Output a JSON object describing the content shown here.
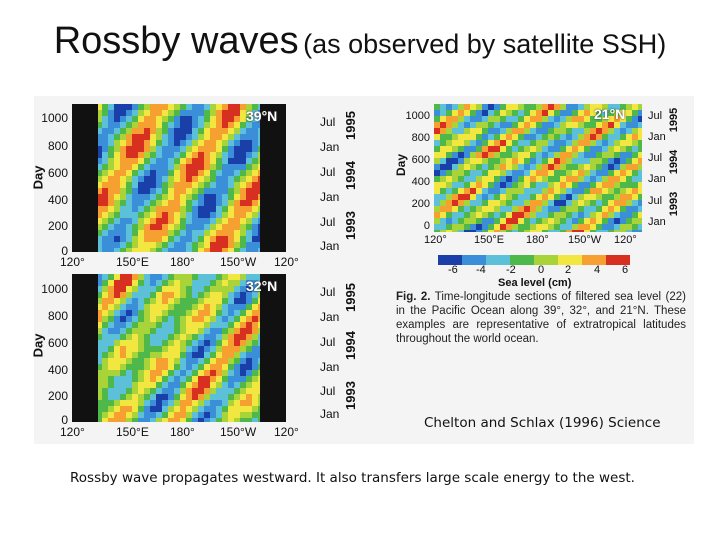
{
  "title": {
    "main": "Rossby waves",
    "sub": "(as observed by satellite SSH)"
  },
  "panels": [
    {
      "latitude": "39°N"
    },
    {
      "latitude": "32°N"
    },
    {
      "latitude": "21°N"
    }
  ],
  "axes": {
    "y_title": "Day",
    "day_ticks_large": [
      "1000",
      "800",
      "600",
      "400",
      "200",
      "0"
    ],
    "day_ticks_small": [
      "1000",
      "800",
      "600",
      "400",
      "200",
      "0"
    ],
    "lon_ticks": [
      "120°",
      "150°E",
      "180°",
      "150°W",
      "120°"
    ],
    "month_ticks": [
      "Jul",
      "Jan",
      "Jul",
      "Jan",
      "Jul",
      "Jan"
    ],
    "years": [
      "1995",
      "1994",
      "1993"
    ]
  },
  "colorbar": {
    "ticks": [
      "-6",
      "-4",
      "-2",
      "0",
      "2",
      "4",
      "6"
    ],
    "label": "Sea level (cm)",
    "colors": [
      "#1a3fa8",
      "#3b8fd8",
      "#5cc0d8",
      "#4fb84a",
      "#a8d43a",
      "#f2e640",
      "#f5a030",
      "#d83020"
    ]
  },
  "caption": {
    "lead": "Fig. 2.",
    "text": "Time-longitude sections of filtered sea level (22) in the Pacific Ocean along 39°, 32°, and 21°N. These examples are representative of extratropical latitudes throughout the world ocean."
  },
  "citation": "Chelton and Schlax (1996) Science",
  "footer": "Rossby wave propagates westward. It also transfers large scale energy to the west."
}
